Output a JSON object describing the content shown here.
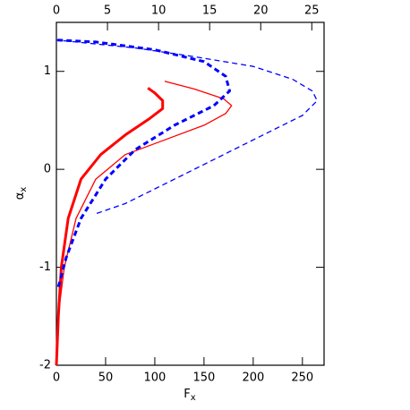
{
  "chart_data": {
    "type": "line",
    "xlabel": {
      "main": "F",
      "sub": "x"
    },
    "ylabel": {
      "main": "α",
      "sub": "x"
    },
    "xlim": [
      0,
      272
    ],
    "xticks": [
      0,
      50,
      100,
      150,
      200,
      250
    ],
    "x2lim": [
      0,
      26.2
    ],
    "x2ticks": [
      0,
      5,
      10,
      15,
      20,
      25
    ],
    "ylim": [
      -2,
      1.5
    ],
    "yticks": [
      -2,
      -1,
      0,
      1
    ],
    "series": [
      {
        "color": "#ff0000",
        "width": 3,
        "dash": false,
        "x": [
          0,
          2,
          5,
          12,
          25,
          45,
          70,
          95,
          108,
          108,
          100,
          93
        ],
        "values": [
          -2,
          -1.5,
          -1,
          -0.5,
          -0.1,
          0.15,
          0.35,
          0.52,
          0.62,
          0.7,
          0.78,
          0.83
        ]
      },
      {
        "color": "#ff0000",
        "width": 1.3,
        "dash": false,
        "x": [
          0,
          3,
          8,
          20,
          40,
          70,
          110,
          150,
          172,
          178,
          170,
          140,
          110
        ],
        "values": [
          -1.9,
          -1.4,
          -1,
          -0.5,
          -0.1,
          0.15,
          0.3,
          0.45,
          0.57,
          0.65,
          0.72,
          0.82,
          0.9
        ]
      },
      {
        "color": "#0000ff",
        "width": 3,
        "dash": true,
        "x": [
          2,
          10,
          25,
          50,
          80,
          120,
          160,
          176,
          172,
          150,
          100,
          40,
          0
        ],
        "values": [
          -1.2,
          -0.9,
          -0.5,
          -0.1,
          0.2,
          0.45,
          0.65,
          0.8,
          0.95,
          1.1,
          1.22,
          1.3,
          1.32
        ]
      },
      {
        "color": "#0000ff",
        "width": 1.3,
        "dash": true,
        "x": [
          41,
          70,
          110,
          160,
          210,
          250,
          265,
          260,
          240,
          200,
          140,
          80,
          20,
          0
        ],
        "values": [
          -0.45,
          -0.35,
          -0.15,
          0.1,
          0.35,
          0.55,
          0.7,
          0.8,
          0.92,
          1.05,
          1.15,
          1.24,
          1.3,
          1.32
        ]
      }
    ]
  }
}
